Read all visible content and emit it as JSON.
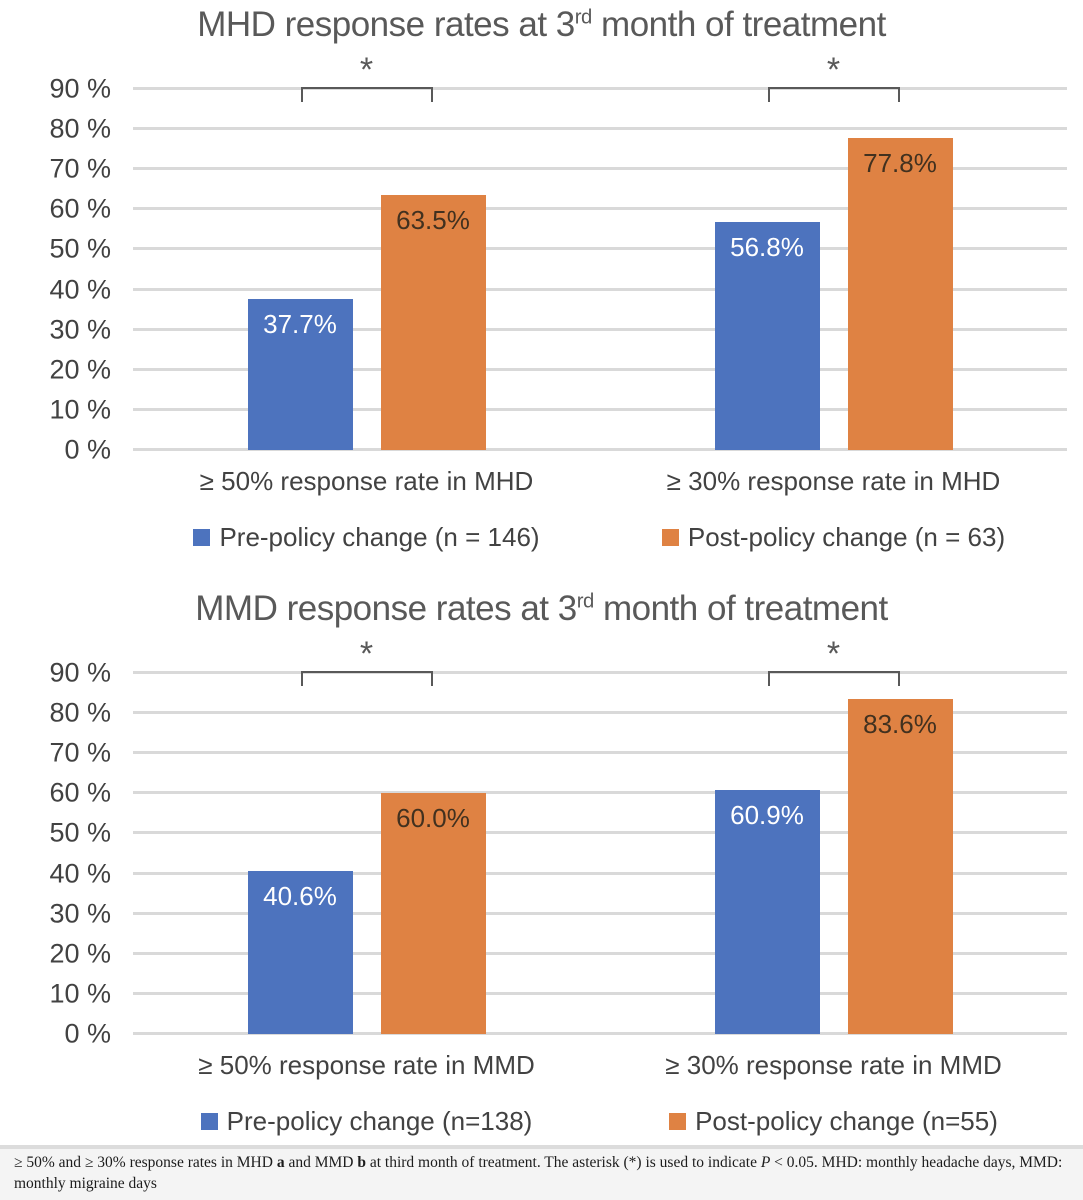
{
  "styles": {
    "pre_color": "#4d73be",
    "post_color": "#df8243",
    "grid_color": "#d9d9d9",
    "axis_text_color": "#424242",
    "title_color": "#595959",
    "significance_color": "#595959",
    "label_on_pre_color": "#ffffff",
    "label_on_post_color": "#42311f",
    "caption_bg": "#f4f4f4",
    "caption_text_color": "#1c1c1c"
  },
  "chart_data": [
    {
      "type": "bar",
      "title_parts": {
        "prefix": "MHD response rates at 3",
        "sup": "rd",
        "suffix": " month of treatment"
      },
      "categories": [
        "≥ 50% response rate in MHD",
        "≥ 30% response rate in MHD"
      ],
      "series": [
        {
          "name": "Pre-policy change (n = 146)",
          "color": "#4d73be",
          "label_color": "#ffffff",
          "values": [
            37.7,
            56.8
          ],
          "labels": [
            "37.7%",
            "56.8%"
          ]
        },
        {
          "name": "Post-policy change (n = 63)",
          "color": "#df8243",
          "label_color": "#42311f",
          "values": [
            63.5,
            77.8
          ],
          "labels": [
            "63.5%",
            "77.8%"
          ]
        }
      ],
      "sig_labels": [
        "*",
        "*"
      ],
      "ylim": [
        0,
        90
      ],
      "yticks": [
        "0 %",
        "10 %",
        "20 %",
        "30 %",
        "40 %",
        "50 %",
        "60 %",
        "70 %",
        "80 %",
        "90 %"
      ],
      "grid": true,
      "legend_position": "bottom"
    },
    {
      "type": "bar",
      "title_parts": {
        "prefix": "MMD response rates at 3",
        "sup": "rd",
        "suffix": " month of treatment"
      },
      "categories": [
        "≥ 50% response rate in MMD",
        "≥ 30% response rate in MMD"
      ],
      "series": [
        {
          "name": "Pre-policy change (n=138)",
          "color": "#4d73be",
          "label_color": "#ffffff",
          "values": [
            40.6,
            60.9
          ],
          "labels": [
            "40.6%",
            "60.9%"
          ]
        },
        {
          "name": "Post-policy change (n=55)",
          "color": "#df8243",
          "label_color": "#42311f",
          "values": [
            60.0,
            83.6
          ],
          "labels": [
            "60.0%",
            "83.6%"
          ]
        }
      ],
      "sig_labels": [
        "*",
        "*"
      ],
      "ylim": [
        0,
        90
      ],
      "yticks": [
        "0 %",
        "10 %",
        "20 %",
        "30 %",
        "40 %",
        "50 %",
        "60 %",
        "70 %",
        "80 %",
        "90 %"
      ],
      "grid": true,
      "legend_position": "bottom"
    }
  ],
  "caption": {
    "segments": [
      {
        "text": "≥ 50% and ≥ 30% response rates in MHD "
      },
      {
        "text": "a",
        "bold": true
      },
      {
        "text": " and MMD "
      },
      {
        "text": "b",
        "bold": true
      },
      {
        "text": " at third month of treatment. The asterisk (*) is used to indicate "
      },
      {
        "text": "P",
        "italic": true
      },
      {
        "text": " < 0.05. MHD: monthly headache days, MMD: monthly migraine days"
      }
    ]
  }
}
